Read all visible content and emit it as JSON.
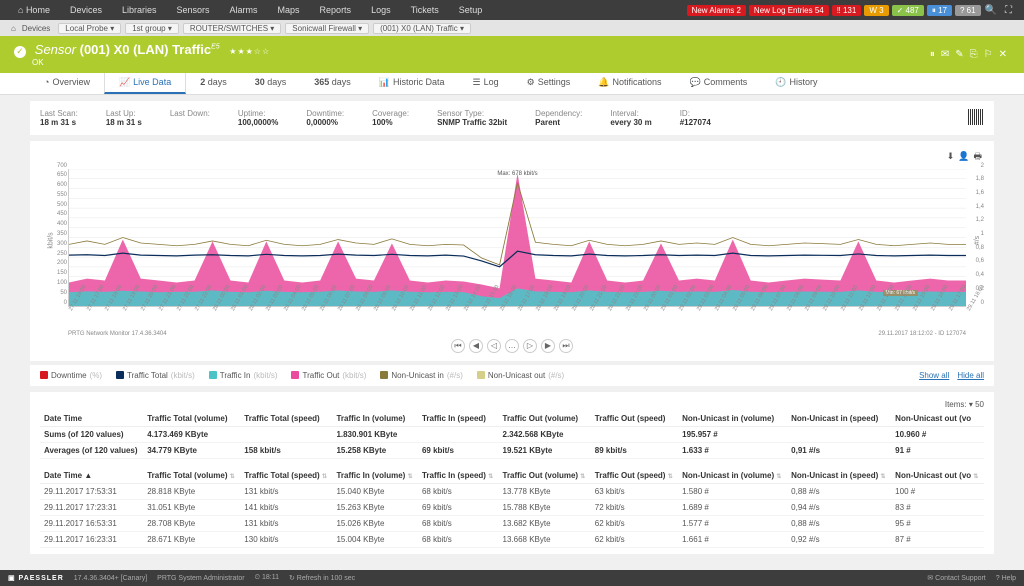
{
  "nav": {
    "items": [
      "Home",
      "Devices",
      "Libraries",
      "Sensors",
      "Alarms",
      "Maps",
      "Reports",
      "Logs",
      "Tickets",
      "Setup"
    ],
    "alerts": [
      {
        "label": "New Alarms",
        "count": "2",
        "cls": "red"
      },
      {
        "label": "New Log Entries",
        "count": "54",
        "cls": "red"
      },
      {
        "label": "",
        "count": "131",
        "cls": "red",
        "icon": "‼"
      },
      {
        "label": "",
        "count": "3",
        "cls": "orange",
        "icon": "W"
      },
      {
        "label": "",
        "count": "487",
        "cls": "green",
        "icon": "✓"
      },
      {
        "label": "",
        "count": "17",
        "cls": "blue",
        "icon": "⏸"
      },
      {
        "label": "",
        "count": "61",
        "cls": "gray",
        "icon": "?"
      }
    ]
  },
  "breadcrumb": {
    "home_icon": "⌂",
    "devices": "Devices",
    "items": [
      "Local Probe ▾",
      "1st group ▾",
      "ROUTER/SWITCHES ▾",
      "Sonicwall Firewall ▾",
      "(001) X0 (LAN) Traffic ▾"
    ]
  },
  "header": {
    "prefix": "Sensor",
    "title": "(001) X0 (LAN) Traffic",
    "sup": "E5",
    "status": "OK",
    "stars": "★★★☆☆",
    "icons": [
      "⏸",
      "✉",
      "✎",
      "⎘",
      "⚐",
      "✕"
    ]
  },
  "tabs": [
    {
      "icon": "◔",
      "label": "Overview"
    },
    {
      "icon": "📈",
      "label": "Live Data",
      "active": true
    },
    {
      "icon": "",
      "label": "2 days"
    },
    {
      "icon": "",
      "label": "30 days"
    },
    {
      "icon": "",
      "label": "365 days"
    },
    {
      "icon": "📊",
      "label": "Historic Data"
    },
    {
      "icon": "☰",
      "label": "Log"
    },
    {
      "icon": "⚙",
      "label": "Settings"
    },
    {
      "icon": "🔔",
      "label": "Notifications"
    },
    {
      "icon": "💬",
      "label": "Comments"
    },
    {
      "icon": "🕘",
      "label": "History"
    }
  ],
  "info": [
    {
      "label": "Last Scan:",
      "val": "18 m 31 s"
    },
    {
      "label": "Last Up:",
      "val": "18 m 31 s"
    },
    {
      "label": "Last Down:",
      "val": ""
    },
    {
      "label": "Uptime:",
      "val": "100,0000%"
    },
    {
      "label": "Downtime:",
      "val": "0,0000%"
    },
    {
      "label": "Coverage:",
      "val": "100%"
    },
    {
      "label": "Sensor Type:",
      "val": "SNMP Traffic 32bit"
    },
    {
      "label": "Dependency:",
      "val": "Parent"
    },
    {
      "label": "Interval:",
      "val": "every 30 m"
    },
    {
      "label": "ID:",
      "val": "#127074"
    }
  ],
  "chart": {
    "tools": [
      "⬇",
      "👤",
      "🖶"
    ],
    "y_left_label": "kbit/s",
    "y_right_label": "#/s",
    "y_left_ticks": [
      0,
      50,
      100,
      150,
      200,
      250,
      300,
      350,
      400,
      450,
      500,
      550,
      600,
      650,
      700
    ],
    "y_right_ticks": [
      "0",
      "0,2",
      "0,4",
      "0,6",
      "0,8",
      "1",
      "1,2",
      "1,4",
      "1,6",
      "1,8",
      "2"
    ],
    "x_ticks": [
      "27.11 16:00",
      "27.11 17:00",
      "27.11 18:00",
      "27.11 19:00",
      "27.11 20:00",
      "27.11 21:00",
      "27.11 22:00",
      "27.11 23:00",
      "28.11 00:00",
      "28.11 01:00",
      "28.11 02:00",
      "28.11 03:00",
      "28.11 04:00",
      "28.11 05:00",
      "28.11 06:00",
      "28.11 07:00",
      "28.11 08:00",
      "28.11 09:00",
      "28.11 10:00",
      "28.11 11:00",
      "28.11 12:00",
      "28.11 13:00",
      "28.11 14:00",
      "28.11 15:00",
      "28.11 16:00",
      "28.11 17:00",
      "28.11 18:00",
      "28.11 19:00",
      "28.11 20:00",
      "28.11 21:00",
      "28.11 22:00",
      "28.11 23:00",
      "29.11 00:00",
      "29.11 01:00",
      "29.11 02:00",
      "29.11 03:00",
      "29.11 04:00",
      "29.11 05:00",
      "29.11 06:00",
      "29.11 07:00",
      "29.11 08:00",
      "29.11 09:00",
      "29.11 10:00",
      "29.11 11:00",
      "29.11 12:00",
      "29.11 13:00",
      "29.11 14:00",
      "29.11 15:00",
      "29.11 16:00",
      "29.11 17:00",
      "29.11 18:00"
    ],
    "max_label": "Max: 678 kbit/s",
    "min_label": "Min: 67 kbit/s",
    "footer_left": "PRTG Network Monitor 17.4.36.3404",
    "footer_right": "29.11.2017 18:12:02 - ID 127074",
    "pager": [
      "⏮",
      "◀",
      "◁",
      "…",
      "▷",
      "▶",
      "⏭"
    ],
    "colors": {
      "traffic_out": "#ea4b9c",
      "traffic_in": "#4cc3c7",
      "total": "#0b2d5b",
      "nonunicast_in": "#8a7a3a",
      "nonunicast_out": "#d6cf8a",
      "downtime": "#d71920",
      "grid": "#e8e8e8"
    },
    "traffic_out_values": [
      120,
      140,
      130,
      340,
      140,
      130,
      120,
      130,
      330,
      130,
      120,
      330,
      130,
      120,
      130,
      330,
      140,
      130,
      320,
      130,
      120,
      130,
      125,
      110,
      90,
      678,
      140,
      130,
      120,
      330,
      130,
      120,
      130,
      320,
      130,
      140,
      130,
      340,
      130,
      120,
      130,
      140,
      135,
      130,
      330,
      130,
      120,
      130,
      140,
      130,
      130
    ],
    "traffic_in_values": [
      70,
      75,
      72,
      78,
      74,
      70,
      72,
      73,
      80,
      72,
      70,
      78,
      72,
      70,
      73,
      79,
      74,
      72,
      80,
      73,
      70,
      72,
      71,
      50,
      40,
      90,
      75,
      72,
      70,
      80,
      72,
      70,
      72,
      78,
      72,
      74,
      72,
      82,
      73,
      70,
      72,
      74,
      73,
      72,
      80,
      72,
      70,
      72,
      74,
      72,
      72
    ],
    "total_values": [
      260,
      262,
      258,
      270,
      260,
      258,
      256,
      260,
      262,
      258,
      256,
      264,
      258,
      256,
      258,
      265,
      260,
      258,
      264,
      258,
      256,
      260,
      255,
      230,
      200,
      280,
      262,
      258,
      256,
      265,
      258,
      256,
      258,
      262,
      258,
      260,
      258,
      270,
      258,
      256,
      258,
      260,
      259,
      258,
      266,
      258,
      256,
      258,
      260,
      258,
      258
    ],
    "nonunicast_values": [
      0.9,
      0.95,
      0.9,
      1.0,
      0.92,
      0.9,
      0.88,
      0.9,
      0.95,
      0.9,
      0.88,
      0.96,
      0.9,
      0.88,
      0.9,
      0.97,
      0.92,
      0.9,
      0.98,
      0.9,
      0.88,
      0.9,
      0.89,
      0.7,
      0.6,
      1.8,
      0.93,
      0.9,
      0.88,
      0.96,
      0.9,
      0.88,
      0.9,
      0.95,
      0.9,
      0.92,
      0.9,
      1.0,
      0.9,
      0.88,
      0.9,
      0.92,
      0.91,
      0.9,
      0.97,
      0.9,
      0.88,
      0.9,
      0.92,
      0.9,
      0.9
    ]
  },
  "legend": {
    "items": [
      {
        "color": "#d71920",
        "label": "Downtime",
        "unit": "(%)"
      },
      {
        "color": "#0b2d5b",
        "label": "Traffic Total",
        "unit": "(kbit/s)"
      },
      {
        "color": "#4cc3c7",
        "label": "Traffic In",
        "unit": "(kbit/s)"
      },
      {
        "color": "#ea4b9c",
        "label": "Traffic Out",
        "unit": "(kbit/s)"
      },
      {
        "color": "#8a7a3a",
        "label": "Non-Unicast in",
        "unit": "(#/s)"
      },
      {
        "color": "#d6cf8a",
        "label": "Non-Unicast out",
        "unit": "(#/s)"
      }
    ],
    "show_all": "Show all",
    "hide_all": "Hide all"
  },
  "table": {
    "items_label": "Items:",
    "items_val": "▾ 50",
    "columns": [
      "Date Time",
      "Traffic Total (volume)",
      "Traffic Total (speed)",
      "Traffic In (volume)",
      "Traffic In (speed)",
      "Traffic Out (volume)",
      "Traffic Out (speed)",
      "Non-Unicast in (volume)",
      "Non-Unicast in (speed)",
      "Non-Unicast out (vo"
    ],
    "sums_label": "Sums (of 120 values)",
    "sums": [
      "4.173.469 KByte",
      "",
      "1.830.901 KByte",
      "",
      "2.342.568 KByte",
      "",
      "195.957 #",
      "",
      "10.960 #"
    ],
    "avg_label": "Averages (of 120 values)",
    "avg": [
      "34.779 KByte",
      "158 kbit/s",
      "15.258 KByte",
      "69 kbit/s",
      "19.521 KByte",
      "89 kbit/s",
      "1.633 #",
      "0,91 #/s",
      "91 #"
    ],
    "detail_header_datetime": "Date Time ▲",
    "rows": [
      {
        "dt": "29.11.2017 17:53:31",
        "cells": [
          "28.818 KByte",
          "131 kbit/s",
          "15.040 KByte",
          "68 kbit/s",
          "13.778 KByte",
          "63 kbit/s",
          "1.580 #",
          "0,88 #/s",
          "100 #"
        ]
      },
      {
        "dt": "29.11.2017 17:23:31",
        "cells": [
          "31.051 KByte",
          "141 kbit/s",
          "15.263 KByte",
          "69 kbit/s",
          "15.788 KByte",
          "72 kbit/s",
          "1.689 #",
          "0,94 #/s",
          "83 #"
        ]
      },
      {
        "dt": "29.11.2017 16:53:31",
        "cells": [
          "28.708 KByte",
          "131 kbit/s",
          "15.026 KByte",
          "68 kbit/s",
          "13.682 KByte",
          "62 kbit/s",
          "1.577 #",
          "0,88 #/s",
          "95 #"
        ]
      },
      {
        "dt": "29.11.2017 16:23:31",
        "cells": [
          "28.671 KByte",
          "130 kbit/s",
          "15.004 KByte",
          "68 kbit/s",
          "13.668 KByte",
          "62 kbit/s",
          "1.661 #",
          "0,92 #/s",
          "87 #"
        ]
      }
    ]
  },
  "footer": {
    "logo": "▣ PAESSLER",
    "version": "17.4.36.3404+ [Canary]",
    "admin": "PRTG System Administrator",
    "time": "⏲ 18:11",
    "refresh": "↻ Refresh in 100 sec",
    "contact": "✉ Contact Support",
    "help": "? Help"
  }
}
